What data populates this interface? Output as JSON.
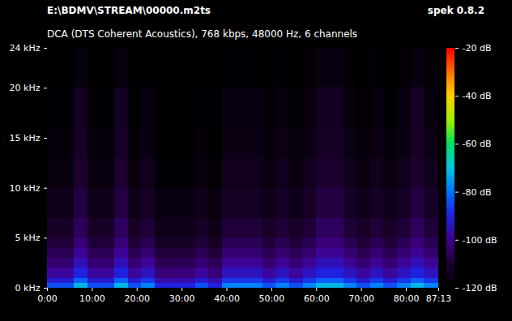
{
  "chart_data": {
    "type": "heatmap",
    "title": "E:\\BDMV\\STREAM\\00000.m2ts",
    "subtitle": "DCA (DTS Coherent Acoustics), 768 kbps, 48000 Hz, 6 channels",
    "annotations": [
      "spek 0.8.2"
    ],
    "x_bins": [
      0,
      3,
      6,
      9,
      12,
      15,
      18,
      21,
      24,
      27,
      30,
      33,
      36,
      39,
      42,
      45,
      48,
      51,
      54,
      57,
      60,
      63,
      66,
      69,
      72,
      75,
      78,
      81,
      84,
      87.2167
    ],
    "y_bins": [
      0,
      0.5,
      1,
      2,
      3,
      4,
      5,
      7,
      10,
      13,
      16,
      20,
      24
    ],
    "cells": [
      [
        -84,
        -84,
        -72,
        -84,
        -84,
        -72,
        -84,
        -78,
        -90,
        -90,
        -90,
        -84,
        -90,
        -78,
        -78,
        -78,
        -84,
        -78,
        -84,
        -78,
        -72,
        -72,
        -78,
        -84,
        -78,
        -84,
        -78,
        -72,
        -78
      ],
      [
        -92,
        -92,
        -82,
        -92,
        -92,
        -82,
        -92,
        -87,
        -96,
        -96,
        -96,
        -92,
        -96,
        -87,
        -87,
        -87,
        -92,
        -87,
        -92,
        -87,
        -82,
        -82,
        -87,
        -92,
        -87,
        -92,
        -87,
        -82,
        -87
      ],
      [
        -98,
        -98,
        -90,
        -98,
        -98,
        -90,
        -98,
        -94,
        -102,
        -102,
        -102,
        -98,
        -102,
        -94,
        -94,
        -94,
        -98,
        -94,
        -98,
        -94,
        -90,
        -90,
        -94,
        -98,
        -94,
        -98,
        -94,
        -90,
        -94
      ],
      [
        -103,
        -103,
        -95,
        -103,
        -103,
        -95,
        -103,
        -99,
        -106,
        -106,
        -106,
        -103,
        -106,
        -99,
        -99,
        -99,
        -103,
        -99,
        -103,
        -99,
        -95,
        -95,
        -99,
        -103,
        -99,
        -103,
        -99,
        -95,
        -99
      ],
      [
        -106,
        -106,
        -99,
        -106,
        -106,
        -99,
        -106,
        -103,
        -109,
        -109,
        -109,
        -106,
        -109,
        -103,
        -103,
        -103,
        -106,
        -103,
        -106,
        -103,
        -99,
        -99,
        -103,
        -106,
        -103,
        -106,
        -103,
        -99,
        -103
      ],
      [
        -109,
        -109,
        -102,
        -109,
        -109,
        -102,
        -109,
        -106,
        -112,
        -112,
        -112,
        -109,
        -112,
        -106,
        -106,
        -106,
        -109,
        -106,
        -109,
        -106,
        -102,
        -102,
        -106,
        -109,
        -106,
        -109,
        -106,
        -102,
        -106
      ],
      [
        -112,
        -112,
        -105,
        -112,
        -112,
        -105,
        -112,
        -109,
        -115,
        -115,
        -115,
        -112,
        -115,
        -109,
        -109,
        -109,
        -112,
        -109,
        -112,
        -109,
        -105,
        -105,
        -109,
        -112,
        -109,
        -112,
        -109,
        -105,
        -109
      ],
      [
        -115,
        -115,
        -108,
        -115,
        -115,
        -108,
        -115,
        -112,
        -117,
        -117,
        -117,
        -115,
        -117,
        -112,
        -112,
        -112,
        -115,
        -112,
        -115,
        -112,
        -108,
        -108,
        -112,
        -115,
        -112,
        -115,
        -112,
        -108,
        -112
      ],
      [
        -117,
        -117,
        -110,
        -117,
        -117,
        -110,
        -117,
        -114,
        -119,
        -119,
        -119,
        -117,
        -119,
        -114,
        -114,
        -114,
        -117,
        -114,
        -117,
        -114,
        -110,
        -110,
        -114,
        -117,
        -114,
        -117,
        -114,
        -110,
        -114
      ],
      [
        -118,
        -118,
        -112,
        -118,
        -118,
        -112,
        -118,
        -116,
        -120,
        -120,
        -120,
        -118,
        -120,
        -116,
        -116,
        -116,
        -118,
        -116,
        -118,
        -116,
        -112,
        -112,
        -116,
        -118,
        -116,
        -118,
        -116,
        -112,
        -116
      ],
      [
        -119,
        -119,
        -113,
        -119,
        -119,
        -113,
        -119,
        -117,
        -120,
        -120,
        -120,
        -119,
        -120,
        -117,
        -117,
        -117,
        -119,
        -117,
        -119,
        -117,
        -113,
        -113,
        -117,
        -119,
        -117,
        -119,
        -117,
        -113,
        -117
      ],
      [
        -120,
        -120,
        -117,
        -120,
        -120,
        -117,
        -120,
        -119,
        -120,
        -120,
        -120,
        -120,
        -120,
        -119,
        -119,
        -119,
        -120,
        -119,
        -120,
        -119,
        -117,
        -117,
        -119,
        -120,
        -119,
        -120,
        -119,
        -117,
        -119
      ]
    ],
    "xlim": [
      0,
      87.2167
    ],
    "xticks": [
      {
        "value": 0,
        "label": "0:00"
      },
      {
        "value": 10,
        "label": "10:00"
      },
      {
        "value": 20,
        "label": "20:00"
      },
      {
        "value": 30,
        "label": "30:00"
      },
      {
        "value": 40,
        "label": "40:00"
      },
      {
        "value": 50,
        "label": "50:00"
      },
      {
        "value": 60,
        "label": "60:00"
      },
      {
        "value": 70,
        "label": "70:00"
      },
      {
        "value": 80,
        "label": "80:00"
      },
      {
        "value": 87.2167,
        "label": "87:13"
      }
    ],
    "ylim": [
      0,
      24
    ],
    "yticks": [
      {
        "value": 0,
        "label": "0 kHz"
      },
      {
        "value": 5,
        "label": "5 kHz"
      },
      {
        "value": 10,
        "label": "10 kHz"
      },
      {
        "value": 15,
        "label": "15 kHz"
      },
      {
        "value": 20,
        "label": "20 kHz"
      },
      {
        "value": 24,
        "label": "24 kHz"
      }
    ],
    "colorbar": {
      "range": [
        -120,
        -20
      ],
      "ticks": [
        {
          "value": -20,
          "label": "-20 dB"
        },
        {
          "value": -40,
          "label": "-40 dB"
        },
        {
          "value": -60,
          "label": "-60 dB"
        },
        {
          "value": -80,
          "label": "-80 dB"
        },
        {
          "value": -100,
          "label": "-100 dB"
        },
        {
          "value": -120,
          "label": "-120 dB"
        }
      ]
    }
  }
}
